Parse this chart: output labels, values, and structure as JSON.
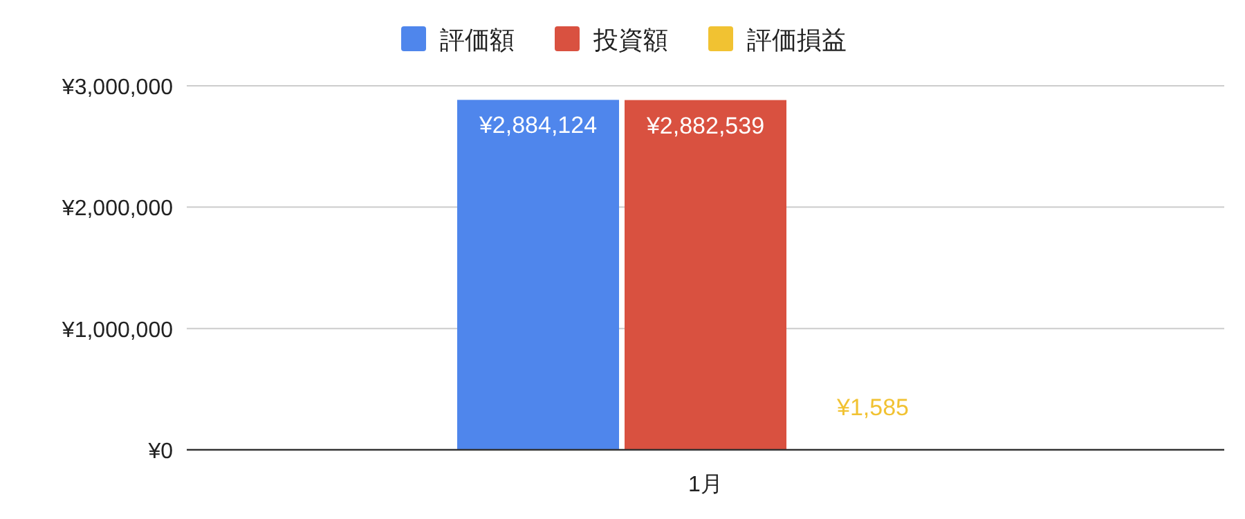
{
  "chart_data": {
    "type": "bar",
    "categories": [
      "1月"
    ],
    "series": [
      {
        "name": "評価額",
        "color": "#4f86ec",
        "values": [
          2884124
        ],
        "value_labels": [
          "¥2,884,124"
        ]
      },
      {
        "name": "投資額",
        "color": "#d95140",
        "values": [
          2882539
        ],
        "value_labels": [
          "¥2,882,539"
        ]
      },
      {
        "name": "評価損益",
        "color": "#f1c232",
        "values": [
          1585
        ],
        "value_labels": [
          "¥1,585"
        ]
      }
    ],
    "ylim": [
      0,
      3000000
    ],
    "yticks": [
      {
        "value": 0,
        "label": "¥0"
      },
      {
        "value": 1000000,
        "label": "¥1,000,000"
      },
      {
        "value": 2000000,
        "label": "¥2,000,000"
      },
      {
        "value": 3000000,
        "label": "¥3,000,000"
      }
    ],
    "grid": "y",
    "legend": "top"
  }
}
